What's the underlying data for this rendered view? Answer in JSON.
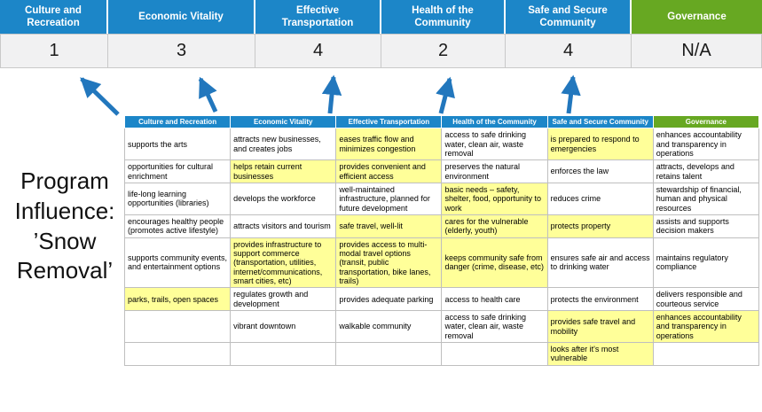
{
  "title": "Program Influence: ’Snow Removal’",
  "colors": {
    "blue": "#1C86C8",
    "green": "#67A822",
    "hl": "#FFFF99",
    "arrow": "#2277BD"
  },
  "scoreboard": {
    "columns": [
      {
        "label": "Culture and Recreation",
        "score": "1",
        "theme": "blue"
      },
      {
        "label": "Economic Vitality",
        "score": "3",
        "theme": "blue"
      },
      {
        "label": "Effective Transportation",
        "score": "4",
        "theme": "blue"
      },
      {
        "label": "Health of the Community",
        "score": "2",
        "theme": "blue"
      },
      {
        "label": "Safe and Secure Community",
        "score": "4",
        "theme": "blue"
      },
      {
        "label": "Governance",
        "score": "N/A",
        "theme": "green"
      }
    ]
  },
  "table": {
    "headers": [
      {
        "label": "Culture and Recreation",
        "theme": "blue"
      },
      {
        "label": "Economic Vitality",
        "theme": "blue"
      },
      {
        "label": "Effective Transportation",
        "theme": "blue"
      },
      {
        "label": "Health of the Community",
        "theme": "blue"
      },
      {
        "label": "Safe and Secure Community",
        "theme": "blue"
      },
      {
        "label": "Governance",
        "theme": "green"
      }
    ],
    "rows": [
      [
        {
          "text": "supports the arts",
          "highlight": false
        },
        {
          "text": "attracts new businesses, and creates jobs",
          "highlight": false
        },
        {
          "text": "eases traffic flow and minimizes congestion",
          "highlight": true
        },
        {
          "text": "access to safe drinking water, clean air, waste removal",
          "highlight": false
        },
        {
          "text": "is prepared to respond to emergencies",
          "highlight": true
        },
        {
          "text": "enhances accountability and transparency in operations",
          "highlight": false
        }
      ],
      [
        {
          "text": "opportunities for cultural enrichment",
          "highlight": false
        },
        {
          "text": "helps retain current businesses",
          "highlight": true
        },
        {
          "text": "provides convenient and efficient access",
          "highlight": true
        },
        {
          "text": "preserves the natural environment",
          "highlight": false
        },
        {
          "text": "enforces the law",
          "highlight": false
        },
        {
          "text": "attracts, develops and retains talent",
          "highlight": false
        }
      ],
      [
        {
          "text": "life-long learning opportunities (libraries)",
          "highlight": false
        },
        {
          "text": "develops the workforce",
          "highlight": false
        },
        {
          "text": "well-maintained infrastructure, planned for future development",
          "highlight": false
        },
        {
          "text": "basic needs – safety, shelter, food, opportunity to work",
          "highlight": true
        },
        {
          "text": "reduces crime",
          "highlight": false
        },
        {
          "text": "stewardship of financial, human and physical resources",
          "highlight": false
        }
      ],
      [
        {
          "text": "encourages healthy people (promotes active lifestyle)",
          "highlight": false
        },
        {
          "text": "attracts visitors and tourism",
          "highlight": false
        },
        {
          "text": "safe travel, well-lit",
          "highlight": true
        },
        {
          "text": "cares for the vulnerable (elderly, youth)",
          "highlight": true
        },
        {
          "text": "protects property",
          "highlight": true
        },
        {
          "text": "assists and supports decision makers",
          "highlight": false
        }
      ],
      [
        {
          "text": "supports community events, and entertainment options",
          "highlight": false
        },
        {
          "text": "provides infrastructure to support commerce (transportation, utilities, internet/communications, smart cities, etc)",
          "highlight": true
        },
        {
          "text": "provides access to multi-modal travel options (transit, public transportation, bike lanes, trails)",
          "highlight": true
        },
        {
          "text": "keeps community safe from danger (crime, disease, etc)",
          "highlight": true
        },
        {
          "text": "ensures safe air and access to drinking water",
          "highlight": false
        },
        {
          "text": "maintains regulatory compliance",
          "highlight": false
        }
      ],
      [
        {
          "text": "parks, trails, open spaces",
          "highlight": true
        },
        {
          "text": "regulates growth and development",
          "highlight": false
        },
        {
          "text": "provides adequate parking",
          "highlight": false
        },
        {
          "text": "access to health care",
          "highlight": false
        },
        {
          "text": "protects the environment",
          "highlight": false
        },
        {
          "text": "delivers responsible and courteous service",
          "highlight": false
        }
      ],
      [
        {
          "text": "",
          "highlight": false
        },
        {
          "text": "vibrant downtown",
          "highlight": false
        },
        {
          "text": "walkable community",
          "highlight": false
        },
        {
          "text": "access to safe drinking water, clean air, waste removal",
          "highlight": false
        },
        {
          "text": "provides safe travel and mobility",
          "highlight": true
        },
        {
          "text": "enhances accountability and transparency in operations",
          "highlight": true
        }
      ],
      [
        {
          "text": "",
          "highlight": false
        },
        {
          "text": "",
          "highlight": false
        },
        {
          "text": "",
          "highlight": false
        },
        {
          "text": "",
          "highlight": false
        },
        {
          "text": "looks after it's most vulnerable",
          "highlight": true
        },
        {
          "text": "",
          "highlight": false
        }
      ]
    ]
  }
}
